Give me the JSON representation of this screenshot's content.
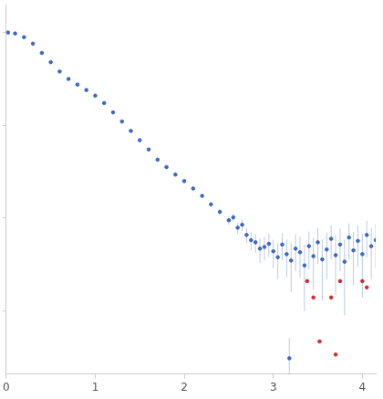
{
  "chart_data": {
    "type": "scatter",
    "log": "y",
    "grid": false,
    "tick_labels": "x",
    "xlim": [
      0,
      4.15
    ],
    "xticks": [
      0,
      1,
      2,
      3,
      4
    ],
    "ylim": [
      0.00021,
      2
    ],
    "yticks": [
      0.001,
      0.01,
      0.1,
      1
    ],
    "series": [
      {
        "color": "#3a66c4",
        "marker": "circle",
        "x": [
          0.02,
          0.1,
          0.2,
          0.3,
          0.4,
          0.5,
          0.6,
          0.7,
          0.8,
          0.9,
          1.0,
          1.1,
          1.2,
          1.3,
          1.4,
          1.5,
          1.6,
          1.7,
          1.8,
          1.9,
          2.0,
          2.1,
          2.2,
          2.3,
          2.4,
          2.5,
          2.55,
          2.6,
          2.65,
          2.7,
          2.75,
          2.8,
          2.85,
          2.9,
          2.95,
          3.0,
          3.05,
          3.1,
          3.15,
          3.18,
          3.2,
          3.25,
          3.3,
          3.35,
          3.4,
          3.45,
          3.5,
          3.55,
          3.6,
          3.65,
          3.7,
          3.75,
          3.8,
          3.85,
          3.9,
          3.95,
          4.0,
          4.05,
          4.1,
          4.15
        ],
        "values": [
          1.0,
          0.977,
          0.891,
          0.759,
          0.603,
          0.479,
          0.38,
          0.316,
          0.275,
          0.24,
          0.209,
          0.174,
          0.138,
          0.11,
          0.0871,
          0.0692,
          0.055,
          0.0427,
          0.0355,
          0.0295,
          0.0251,
          0.0209,
          0.0174,
          0.0141,
          0.0117,
          0.0095,
          0.0102,
          0.0079,
          0.0085,
          0.0066,
          0.0058,
          0.0055,
          0.0047,
          0.0049,
          0.0053,
          0.0044,
          0.0038,
          0.0052,
          0.0041,
          0.00031,
          0.0035,
          0.0047,
          0.0043,
          0.0031,
          0.005,
          0.0039,
          0.0055,
          0.0036,
          0.0046,
          0.006,
          0.004,
          0.0052,
          0.0034,
          0.0062,
          0.0045,
          0.0057,
          0.0041,
          0.0066,
          0.005,
          0.0058
        ],
        "errors": [
          0.0001,
          0.0001,
          0.0001,
          0.0001,
          0.0001,
          0.0001,
          0.0001,
          0.0001,
          0.0001,
          0.0001,
          0.0002,
          0.0002,
          0.0002,
          0.0002,
          0.0003,
          0.0003,
          0.0003,
          0.0004,
          0.0004,
          0.0005,
          0.0005,
          0.0006,
          0.0007,
          0.0008,
          0.0009,
          0.001,
          0.001,
          0.0011,
          0.0012,
          0.0012,
          0.0013,
          0.0013,
          0.0014,
          0.0014,
          0.0015,
          0.0015,
          0.0016,
          0.0017,
          0.0018,
          0.0002,
          0.0019,
          0.002,
          0.002,
          0.0021,
          0.0022,
          0.0022,
          0.0023,
          0.0023,
          0.0024,
          0.0024,
          0.0025,
          0.0025,
          0.0025,
          0.0026,
          0.0026,
          0.0027,
          0.0027,
          0.0028,
          0.0028,
          0.0029
        ]
      },
      {
        "color": "#d62728",
        "marker": "circle",
        "x": [
          3.38,
          3.45,
          3.52,
          3.65,
          3.7,
          3.75,
          4.0,
          4.05
        ],
        "values": [
          0.0021,
          0.0014,
          0.00047,
          0.0014,
          0.00034,
          0.0021,
          0.0021,
          0.0018
        ]
      }
    ]
  }
}
